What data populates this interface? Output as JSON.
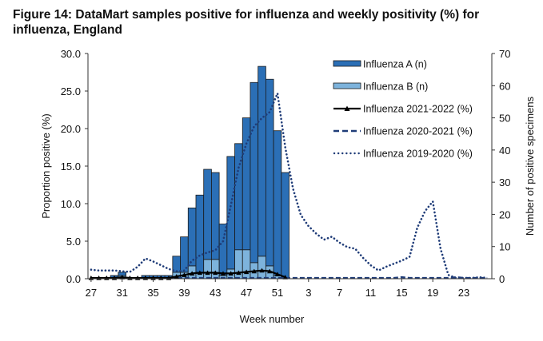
{
  "title": "Figure 14: DataMart samples positive for influenza and weekly positivity (%) for influenza, England",
  "chart_data": {
    "type": "bar",
    "title": "Figure 14: DataMart samples positive for influenza and weekly positivity (%) for influenza, England",
    "xlabel": "Week number",
    "ylabel_left": "Proportion positive (%)",
    "ylabel_right": "Number of positive specimens",
    "ylim_left": [
      0,
      30
    ],
    "ylim_right": [
      0,
      70
    ],
    "yticks_left": [
      "0.0",
      "5.0",
      "10.0",
      "15.0",
      "20.0",
      "25.0",
      "30.0"
    ],
    "yticks_right": [
      "0",
      "10",
      "20",
      "30",
      "40",
      "50",
      "60",
      "70"
    ],
    "grid": false,
    "legend_position": "top-right",
    "categories": [
      27,
      28,
      29,
      30,
      31,
      32,
      33,
      34,
      35,
      36,
      37,
      38,
      39,
      40,
      41,
      42,
      43,
      44,
      45,
      46,
      47,
      48,
      49,
      50,
      51,
      52,
      1,
      2,
      3,
      4,
      5,
      6,
      7,
      8,
      9,
      10,
      11,
      12,
      13,
      14,
      15,
      16,
      17,
      18,
      19,
      20,
      21,
      22,
      23,
      24,
      25,
      26
    ],
    "xtick_labels": [
      "27",
      "31",
      "35",
      "39",
      "43",
      "47",
      "51",
      "3",
      "7",
      "11",
      "15",
      "19",
      "23"
    ],
    "xtick_indices": [
      0,
      4,
      8,
      12,
      16,
      20,
      24,
      28,
      32,
      36,
      40,
      44,
      48
    ],
    "series": [
      {
        "name": "Influenza A (n)",
        "kind": "bar-stacked",
        "axis": "right",
        "color": "#2B6FB6",
        "values": [
          0,
          0,
          0,
          1,
          1,
          0,
          0,
          1,
          1,
          1,
          1,
          5,
          11,
          18,
          24,
          28,
          27,
          16,
          35,
          33,
          41,
          56,
          59,
          58,
          45,
          33,
          null,
          null,
          null,
          null,
          null,
          null,
          null,
          null,
          null,
          null,
          null,
          null,
          null,
          null,
          null,
          null,
          null,
          null,
          null,
          null,
          null,
          null,
          null,
          null,
          null,
          null
        ]
      },
      {
        "name": "Influenza B (n)",
        "kind": "bar-stacked",
        "axis": "right",
        "color": "#7DB3DC",
        "values": [
          0,
          0,
          0,
          0,
          1,
          0,
          0,
          0,
          0,
          0,
          0,
          2,
          2,
          4,
          2,
          6,
          6,
          1,
          3,
          9,
          9,
          5,
          7,
          4,
          1,
          0,
          null,
          null,
          null,
          null,
          null,
          null,
          null,
          null,
          null,
          null,
          null,
          null,
          null,
          null,
          null,
          null,
          null,
          null,
          null,
          null,
          null,
          null,
          null,
          null,
          null,
          null
        ]
      },
      {
        "name": "Influenza 2021-2022 (%)",
        "kind": "line-triangle",
        "axis": "left",
        "color": "#000000",
        "values": [
          0.1,
          0.1,
          0.1,
          0.1,
          0.2,
          0.1,
          0.1,
          0.1,
          0.1,
          0.1,
          0.1,
          0.3,
          0.5,
          0.7,
          0.8,
          0.8,
          0.8,
          0.7,
          0.7,
          0.8,
          0.9,
          1.0,
          1.1,
          1.0,
          0.6,
          0.2,
          null,
          null,
          null,
          null,
          null,
          null,
          null,
          null,
          null,
          null,
          null,
          null,
          null,
          null,
          null,
          null,
          null,
          null,
          null,
          null,
          null,
          null,
          null,
          null,
          null,
          null
        ]
      },
      {
        "name": "Influenza 2020-2021 (%)",
        "kind": "line-dashed",
        "axis": "left",
        "color": "#1F3C78",
        "values": [
          0.1,
          0.1,
          0.1,
          0.1,
          0.1,
          0.1,
          0.1,
          0.1,
          0.1,
          0.1,
          0.1,
          0.1,
          0.1,
          0.1,
          0.1,
          0.1,
          0.1,
          0.1,
          0.1,
          0.1,
          0.1,
          0.1,
          0.1,
          0.1,
          0.1,
          0.1,
          0.1,
          0.1,
          0.1,
          0.1,
          0.1,
          0.1,
          0.1,
          0.1,
          0.1,
          0.1,
          0.1,
          0.1,
          0.1,
          0.1,
          0.2,
          0.1,
          0.1,
          0.1,
          0.1,
          0.1,
          0.1,
          0.2,
          0.1,
          0.1,
          0.1,
          0.1
        ]
      },
      {
        "name": "Influenza 2019-2020 (%)",
        "kind": "line-dotted",
        "axis": "left",
        "color": "#1F3C78",
        "values": [
          1.2,
          1.1,
          1.1,
          1.1,
          1.0,
          0.9,
          1.6,
          2.7,
          2.3,
          1.8,
          1.3,
          1.0,
          1.1,
          2.4,
          3.1,
          3.5,
          3.8,
          5.0,
          9.8,
          14.8,
          18.0,
          20.3,
          21.4,
          22.2,
          24.7,
          17.5,
          12.0,
          8.5,
          7.0,
          6.0,
          5.2,
          5.6,
          4.8,
          4.2,
          4.0,
          2.8,
          1.8,
          1.1,
          1.6,
          2.0,
          2.4,
          2.9,
          6.8,
          9.0,
          10.3,
          4.0,
          0.5,
          0.1,
          0.1,
          0.1,
          0.2,
          0.1
        ]
      }
    ]
  }
}
